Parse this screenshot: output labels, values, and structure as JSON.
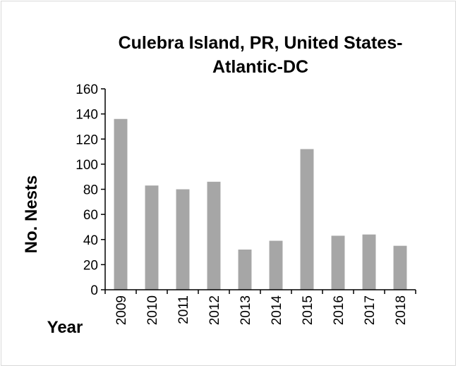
{
  "chart_data": {
    "type": "bar",
    "title": [
      "Culebra Island, PR, United States-",
      "Atlantic-DC"
    ],
    "xlabel": "Year",
    "ylabel": "No. Nests",
    "categories": [
      "2009",
      "2010",
      "2011",
      "2012",
      "2013",
      "2014",
      "2015",
      "2016",
      "2017",
      "2018"
    ],
    "values": [
      136,
      83,
      80,
      86,
      32,
      39,
      112,
      43,
      44,
      35
    ],
    "ylim": [
      0,
      160
    ],
    "yticks": [
      0,
      20,
      40,
      60,
      80,
      100,
      120,
      140,
      160
    ],
    "grid": false,
    "legend": "none",
    "bar_color": "#a6a6a6",
    "axis_color": "#000000"
  }
}
